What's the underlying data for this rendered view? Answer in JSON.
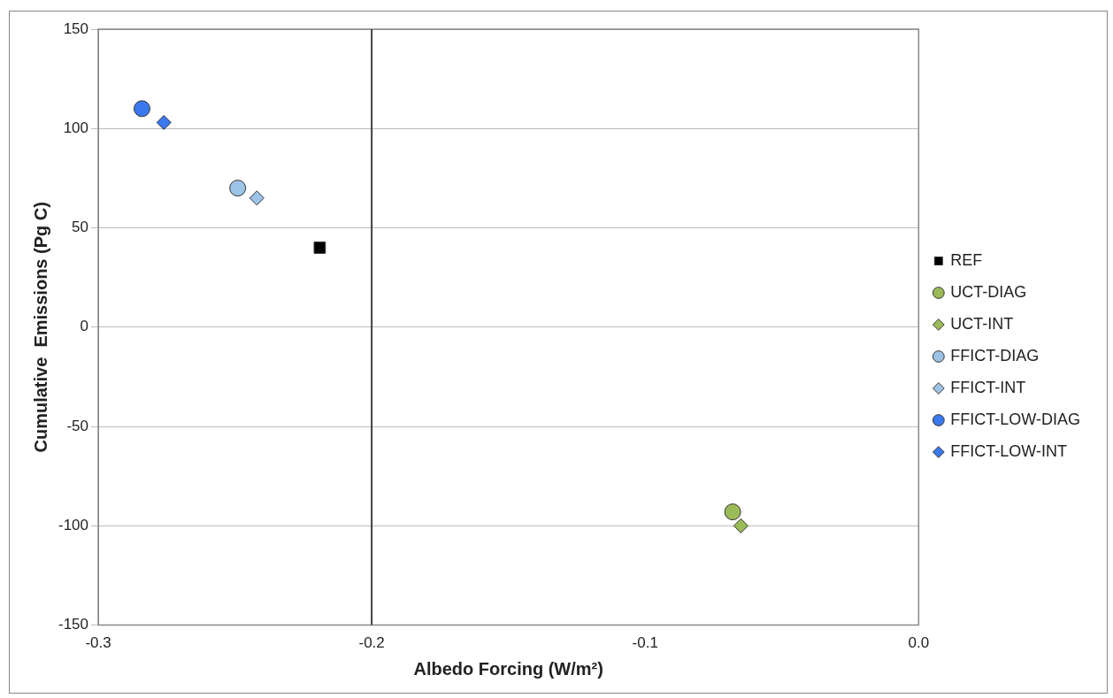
{
  "chart_data": {
    "type": "scatter",
    "xlabel": "Albedo Forcing (W/m²)",
    "ylabel": "Cumulative  Emissions (Pg C)",
    "xlim": [
      -0.3,
      0.0
    ],
    "xticks": [
      {
        "value": -0.3,
        "label": "-0.3"
      },
      {
        "value": -0.2,
        "label": "-0.2"
      },
      {
        "value": -0.1,
        "label": "-0.1"
      },
      {
        "value": 0.0,
        "label": "0.0"
      }
    ],
    "ylim": [
      -150,
      150
    ],
    "yticks": [
      -150,
      -100,
      -50,
      0,
      50,
      100,
      150
    ],
    "grid": "y",
    "legend": "right",
    "ref_lines": [
      {
        "axis": "x",
        "value": -0.2,
        "color": "#404040"
      }
    ],
    "series": [
      {
        "name": "REF",
        "color": "#000000",
        "marker": "square",
        "x": [
          -0.219
        ],
        "values": [
          40
        ]
      },
      {
        "name": "UCT-DIAG",
        "color": "#9bbb59",
        "marker": "circle",
        "x": [
          -0.068
        ],
        "values": [
          -93
        ]
      },
      {
        "name": "UCT-INT",
        "color": "#9bbb59",
        "marker": "diamond",
        "x": [
          -0.065
        ],
        "values": [
          -100
        ]
      },
      {
        "name": "FFICT-DIAG",
        "color": "#9dc3e6",
        "marker": "circle",
        "x": [
          -0.249
        ],
        "values": [
          70
        ]
      },
      {
        "name": "FFICT-INT",
        "color": "#9dc3e6",
        "marker": "diamond",
        "x": [
          -0.242
        ],
        "values": [
          65
        ]
      },
      {
        "name": "FFICT-LOW-DIAG",
        "color": "#3a78f0",
        "marker": "circle",
        "x": [
          -0.284
        ],
        "values": [
          110
        ]
      },
      {
        "name": "FFICT-LOW-INT",
        "color": "#3a78f0",
        "marker": "diamond",
        "x": [
          -0.276
        ],
        "values": [
          103
        ]
      }
    ]
  }
}
